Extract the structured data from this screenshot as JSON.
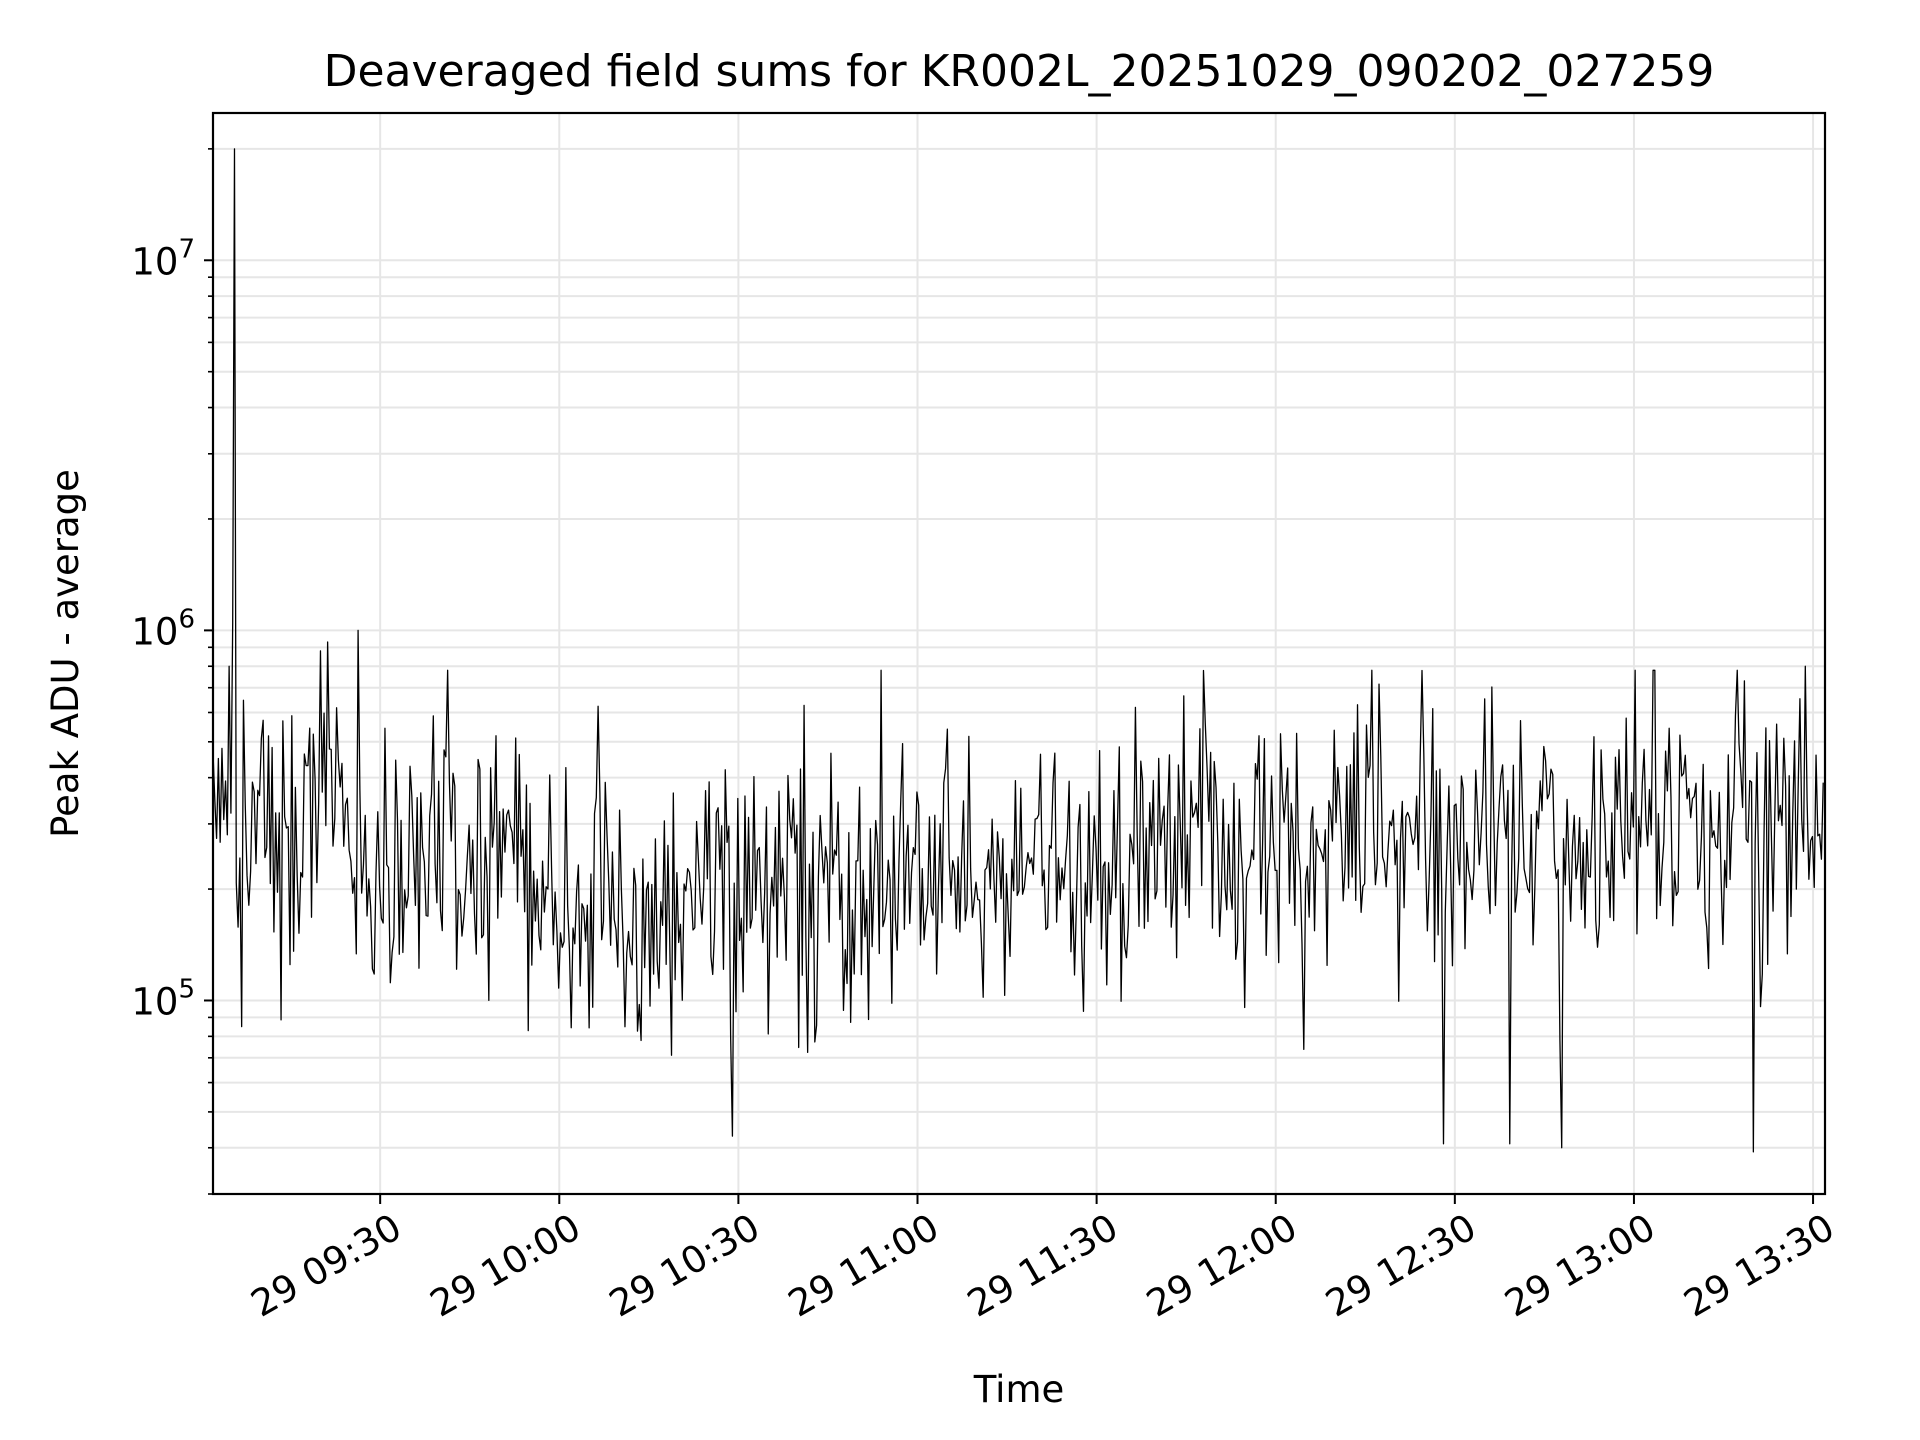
{
  "chart_data": {
    "type": "line",
    "title": "Deaveraged field sums for KR002L_20251029_090202_027259",
    "xlabel": "Time",
    "ylabel": "Peak ADU - average",
    "yscale": "log",
    "ylim": [
      30000,
      25000000
    ],
    "xlim_minutes_from_0900": [
      2.0,
      272.0
    ],
    "grid": true,
    "line_color": "#000000",
    "grid_color": "#e6e6e6",
    "x_ticks": [
      {
        "minutes": 30,
        "label": "29 09:30"
      },
      {
        "minutes": 60,
        "label": "29 10:00"
      },
      {
        "minutes": 90,
        "label": "29 10:30"
      },
      {
        "minutes": 120,
        "label": "29 11:00"
      },
      {
        "minutes": 150,
        "label": "29 11:30"
      },
      {
        "minutes": 180,
        "label": "29 12:00"
      },
      {
        "minutes": 210,
        "label": "29 12:30"
      },
      {
        "minutes": 240,
        "label": "29 13:00"
      },
      {
        "minutes": 270,
        "label": "29 13:30"
      }
    ],
    "y_ticks": [
      {
        "value": 100000,
        "base": "10",
        "exp": "5"
      },
      {
        "value": 1000000,
        "base": "10",
        "exp": "6"
      },
      {
        "value": 10000000,
        "base": "10",
        "exp": "7"
      }
    ],
    "series": [
      {
        "name": "Peak ADU - average",
        "x_start_minutes": 2.0,
        "x_step_minutes": 0.3,
        "n_points": 900,
        "seed": 27259,
        "baseline": [
          {
            "minutes": 2,
            "value": 450000
          },
          {
            "minutes": 6,
            "value": 320000
          },
          {
            "minutes": 15,
            "value": 250000
          },
          {
            "minutes": 20,
            "value": 420000
          },
          {
            "minutes": 24,
            "value": 380000
          },
          {
            "minutes": 28,
            "value": 230000
          },
          {
            "minutes": 60,
            "value": 200000
          },
          {
            "minutes": 120,
            "value": 200000
          },
          {
            "minutes": 150,
            "value": 240000
          },
          {
            "minutes": 180,
            "value": 260000
          },
          {
            "minutes": 210,
            "value": 270000
          },
          {
            "minutes": 240,
            "value": 270000
          },
          {
            "minutes": 272,
            "value": 300000
          }
        ],
        "spikes": [
          {
            "minutes": 5.6,
            "value": 20000000
          },
          {
            "minutes": 5.2,
            "value": 1050000
          },
          {
            "minutes": 4.6,
            "value": 800000
          },
          {
            "minutes": 6.8,
            "value": 85000
          },
          {
            "minutes": 20.0,
            "value": 880000
          },
          {
            "minutes": 21.3,
            "value": 930000
          },
          {
            "minutes": 26.4,
            "value": 1000000
          },
          {
            "minutes": 88.9,
            "value": 43000
          },
          {
            "minutes": 208.0,
            "value": 41000
          },
          {
            "minutes": 219.2,
            "value": 41000
          },
          {
            "minutes": 227.8,
            "value": 40000
          },
          {
            "minutes": 240.1,
            "value": 780000
          },
          {
            "minutes": 260.0,
            "value": 39000
          },
          {
            "minutes": 268.8,
            "value": 800000
          }
        ]
      }
    ]
  }
}
